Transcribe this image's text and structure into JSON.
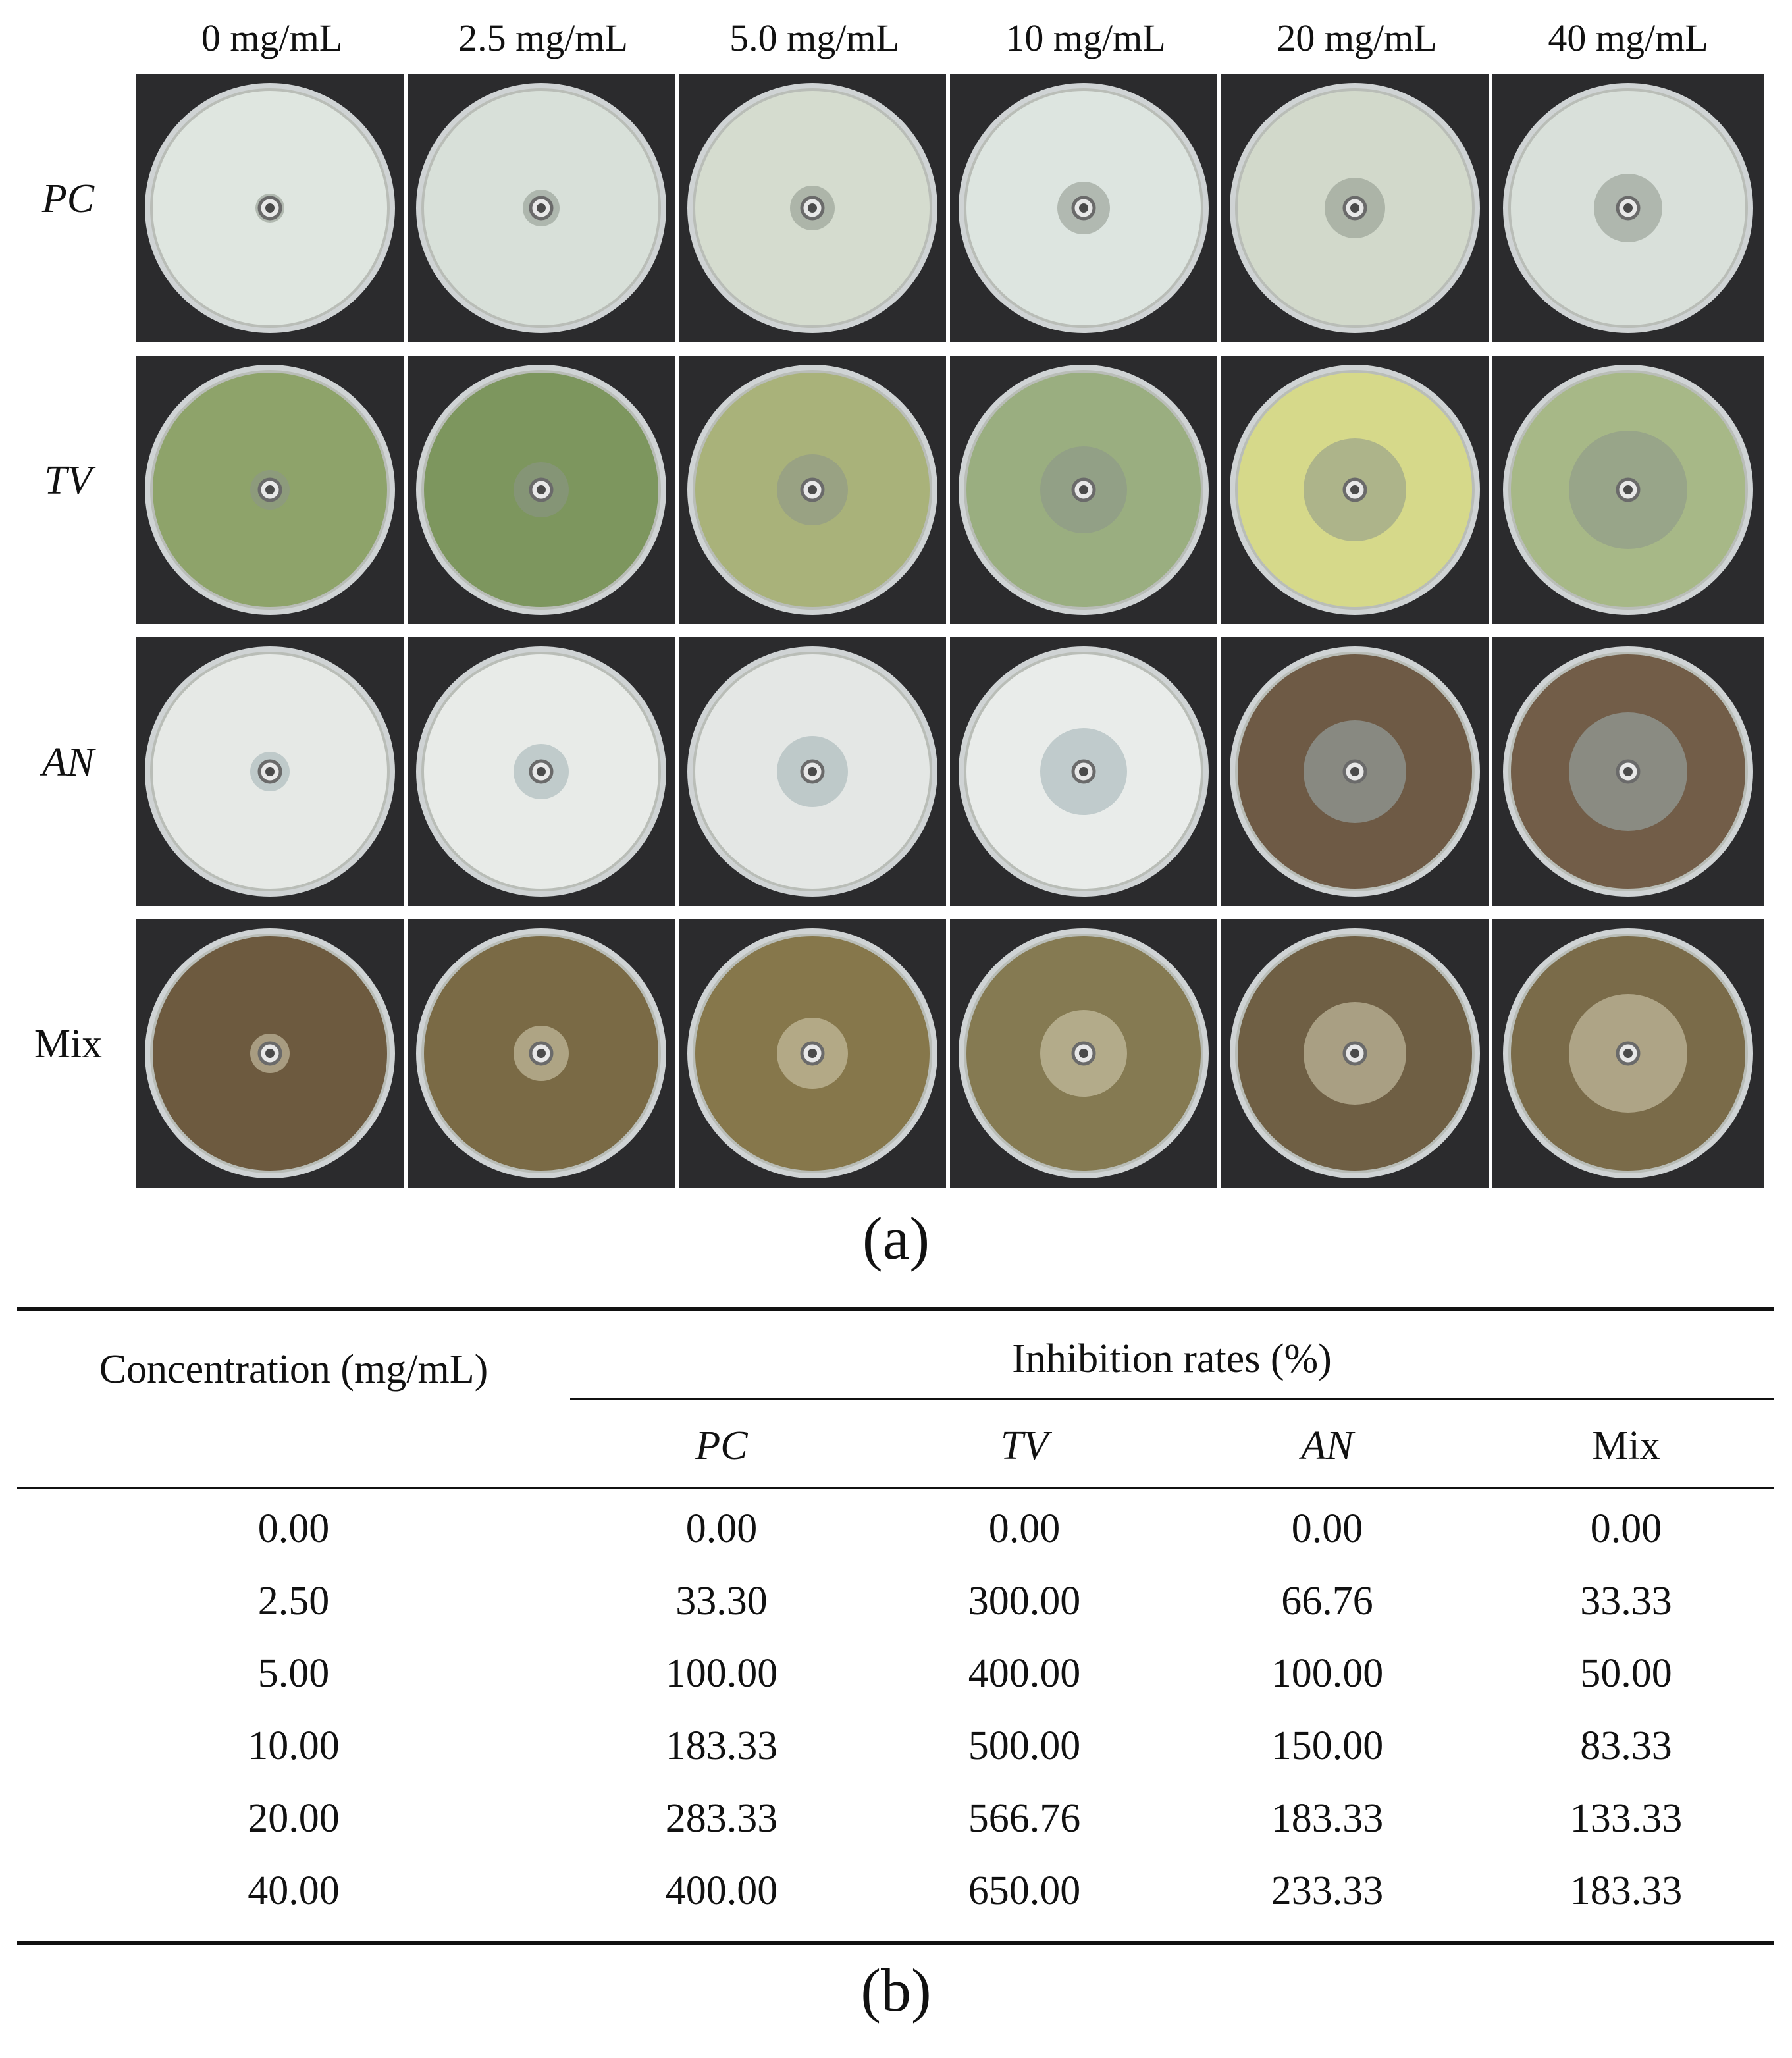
{
  "panel_a": {
    "column_headers": [
      "0 mg/mL",
      "2.5 mg/mL",
      "5.0 mg/mL",
      "10 mg/mL",
      "20 mg/mL",
      "40 mg/mL"
    ],
    "row_labels": [
      "PC",
      "TV",
      "AN",
      "Mix"
    ],
    "plate_colors": {
      "PC": [
        "#dfe6e0",
        "#d8e0d9",
        "#d5dccf",
        "#dde5e0",
        "#d2d9cb",
        "#d9e0da"
      ],
      "TV": [
        "#8ea36a",
        "#7d965e",
        "#a9b27a",
        "#9aae80",
        "#d6d98a",
        "#a7b887"
      ],
      "AN": [
        "#e6e9e6",
        "#e8ebe8",
        "#e4e7e5",
        "#e9ecea",
        "#6e5a45",
        "#725d48"
      ],
      "Mix": [
        "#6d5a3f",
        "#7a6a45",
        "#86774b",
        "#857a52",
        "#6f5f44",
        "#7a6b49"
      ]
    },
    "caption": "(a)"
  },
  "panel_b": {
    "header_concentration": "Concentration (mg/mL)",
    "header_group": "Inhibition rates (%)",
    "subheaders": [
      "PC",
      "TV",
      "AN",
      "Mix"
    ],
    "rows": [
      [
        "0.00",
        "0.00",
        "0.00",
        "0.00",
        "0.00"
      ],
      [
        "2.50",
        "33.30",
        "300.00",
        "66.76",
        "33.33"
      ],
      [
        "5.00",
        "100.00",
        "400.00",
        "100.00",
        "50.00"
      ],
      [
        "10.00",
        "183.33",
        "500.00",
        "150.00",
        "83.33"
      ],
      [
        "20.00",
        "283.33",
        "566.76",
        "183.33",
        "133.33"
      ],
      [
        "40.00",
        "400.00",
        "650.00",
        "233.33",
        "183.33"
      ]
    ],
    "caption": "(b)"
  }
}
